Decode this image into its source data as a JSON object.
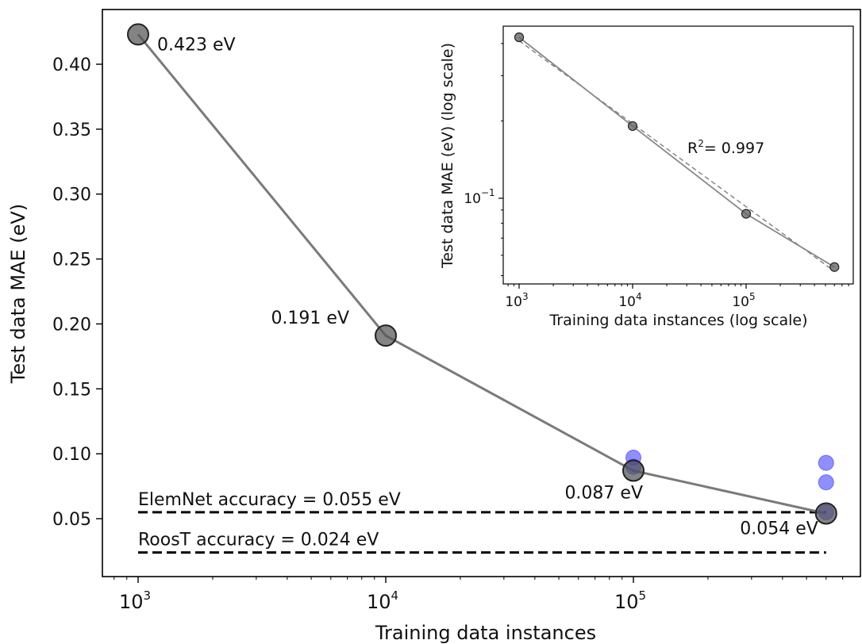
{
  "chart_data": [
    {
      "type": "line",
      "xscale": "log",
      "xlabel": "Training data instances",
      "ylabel": "Test data MAE (eV)",
      "xlim": [
        700,
        700000
      ],
      "ylim": [
        0.0,
        0.44
      ],
      "x_ticks": [
        {
          "value": 1000,
          "base": "10",
          "exp": "3"
        },
        {
          "value": 10000,
          "base": "10",
          "exp": "4"
        },
        {
          "value": 100000,
          "base": "10",
          "exp": "5"
        }
      ],
      "y_ticks": [
        {
          "value": 0.05,
          "label": "0.05"
        },
        {
          "value": 0.1,
          "label": "0.10"
        },
        {
          "value": 0.15,
          "label": "0.15"
        },
        {
          "value": 0.2,
          "label": "0.20"
        },
        {
          "value": 0.25,
          "label": "0.25"
        },
        {
          "value": 0.3,
          "label": "0.30"
        },
        {
          "value": 0.35,
          "label": "0.35"
        },
        {
          "value": 0.4,
          "label": "0.40"
        }
      ],
      "series": [
        {
          "color": "#555555",
          "x": [
            1000,
            10000,
            100000,
            600000
          ],
          "y": [
            0.423,
            0.191,
            0.087,
            0.054
          ],
          "labels": [
            "0.423 eV",
            "0.191 eV",
            "0.087 eV",
            "0.054 eV"
          ]
        }
      ],
      "extra_points": {
        "color": "#3333ff",
        "x": [
          100000,
          100000,
          600000,
          600000,
          600000
        ],
        "y": [
          0.097,
          0.09,
          0.093,
          0.078,
          0.055
        ]
      },
      "reference_lines": [
        {
          "y": 0.055,
          "label": "ElemNet accuracy = 0.055 eV",
          "x_start": 1000,
          "x_end": 600000
        },
        {
          "y": 0.024,
          "label": "RoosT accuracy = 0.024 eV",
          "x_start": 1000,
          "x_end": 600000
        }
      ]
    },
    {
      "type": "line",
      "xscale": "log",
      "yscale": "log",
      "xlabel": "Training data instances (log scale)",
      "ylabel": "Test data MAE (eV) (log scale)",
      "xlim": [
        700,
        850000
      ],
      "ylim": [
        0.045,
        0.5
      ],
      "x_ticks": [
        {
          "value": 1000,
          "base": "10",
          "exp": "3"
        },
        {
          "value": 10000,
          "base": "10",
          "exp": "4"
        },
        {
          "value": 100000,
          "base": "10",
          "exp": "5"
        }
      ],
      "y_ticks": [
        {
          "value": 0.1,
          "base": "10",
          "exp": "−1"
        }
      ],
      "series": [
        {
          "color": "#555555",
          "x": [
            1000,
            10000,
            100000,
            600000
          ],
          "y": [
            0.423,
            0.191,
            0.087,
            0.054
          ]
        }
      ],
      "fit_line": {
        "x": [
          1000,
          600000
        ],
        "y": [
          0.41,
          0.052
        ]
      },
      "annotation": {
        "text": "R",
        "sup": "2",
        "rest": "= 0.997"
      }
    }
  ]
}
